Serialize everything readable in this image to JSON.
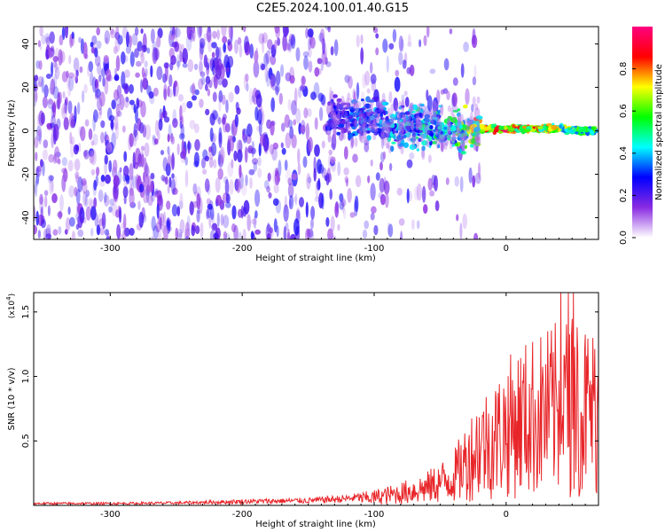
{
  "title": "C2E5.2024.100.01.40.G15",
  "chart_data": [
    {
      "type": "heatmap",
      "xlabel": "Height of straight line (km)",
      "ylabel": "Frequency (Hz)",
      "xlim": [
        -358,
        70
      ],
      "ylim": [
        -50,
        48
      ],
      "xticks": [
        -300,
        -200,
        -100,
        0
      ],
      "xtick_labels": [
        "-300",
        "-200",
        "-100",
        "0"
      ],
      "yticks": [
        -40,
        -20,
        0,
        20,
        40
      ],
      "ytick_labels": [
        "-40",
        "-20",
        "0",
        "20",
        "40"
      ],
      "grid": false,
      "colorbar": {
        "label": "Normalized spectral amplitude",
        "range": [
          0,
          1
        ],
        "ticks": [
          0,
          0.2,
          0.4,
          0.6,
          0.8
        ],
        "tick_labels": [
          "0.0",
          "0.2",
          "0.4",
          "0.6",
          "0.8"
        ],
        "colors": [
          "#ffffff",
          "#8a2be2",
          "#0000ff",
          "#00ffff",
          "#00ff00",
          "#ffff00",
          "#ff0000",
          "#ff0080"
        ]
      },
      "ridge": {
        "x": [
          -130,
          -100,
          -80,
          -60,
          -40,
          -20,
          0,
          20,
          40,
          60,
          70
        ],
        "y": [
          6,
          5,
          2,
          2,
          0,
          1,
          1,
          1,
          1,
          0,
          0
        ],
        "amplitude": [
          0.3,
          0.4,
          0.45,
          0.5,
          0.55,
          0.8,
          0.9,
          0.8,
          0.7,
          0.6,
          0.6
        ]
      }
    },
    {
      "type": "line",
      "xlabel": "Height of straight line (km)",
      "ylabel": "SNR (10 * v/v)",
      "scale_label": "(x10",
      "scale_exp": "4",
      "scale_close": ")",
      "xlim": [
        -358,
        70
      ],
      "ylim": [
        0,
        1.65
      ],
      "xticks": [
        -300,
        -200,
        -100,
        0
      ],
      "xtick_labels": [
        "-300",
        "-200",
        "-100",
        "0"
      ],
      "yticks": [
        0.5,
        1.0,
        1.5
      ],
      "ytick_labels": [
        "0.5",
        "1.0",
        "1.5"
      ],
      "grid": false,
      "series": [
        {
          "color": "#e8262a",
          "envelope_x": [
            -358,
            -300,
            -250,
            -200,
            -150,
            -120,
            -100,
            -80,
            -60,
            -40,
            -30,
            -20,
            -10,
            0,
            10,
            20,
            30,
            40,
            50,
            60,
            70
          ],
          "envelope_y": [
            0.02,
            0.02,
            0.025,
            0.04,
            0.05,
            0.07,
            0.1,
            0.15,
            0.22,
            0.35,
            0.55,
            0.75,
            0.8,
            0.95,
            1.05,
            1.1,
            1.15,
            1.2,
            1.25,
            1.2,
            1.15
          ],
          "peak": 1.65
        }
      ]
    }
  ]
}
